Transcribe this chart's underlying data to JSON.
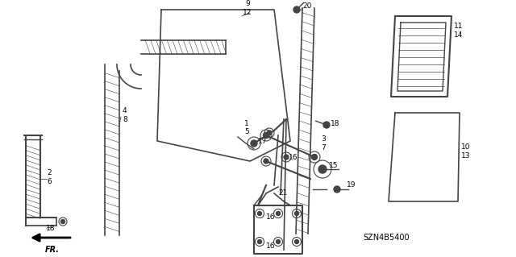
{
  "bg_color": "#ffffff",
  "part_number_code": "SZN4B5400",
  "dgray": "#444444",
  "figsize": [
    6.4,
    3.19
  ],
  "dpi": 100
}
